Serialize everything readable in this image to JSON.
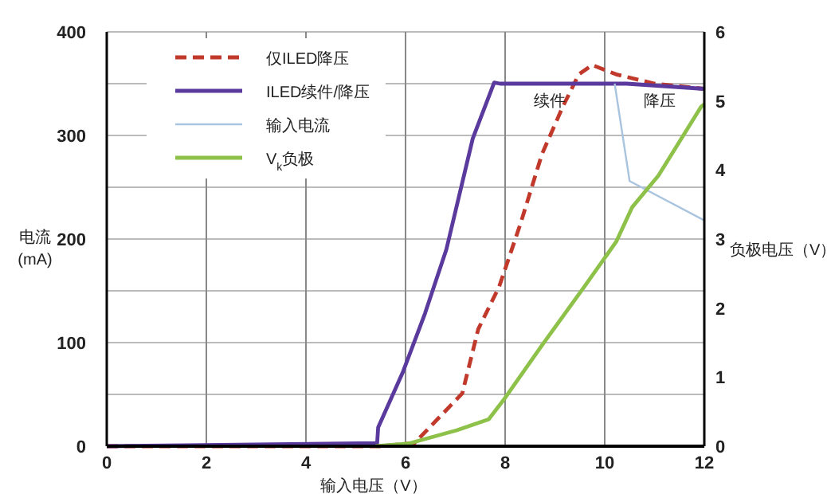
{
  "chart_data": {
    "type": "line",
    "xlabel": "输入电压（V）",
    "ylabel": "电流 (mA)",
    "y2label": "负极电压（V）",
    "xlim": [
      0,
      12
    ],
    "xticks": [
      0,
      2,
      4,
      6,
      8,
      10,
      12
    ],
    "ylim": [
      0,
      400
    ],
    "yticks": [
      0,
      {
        "value": 50,
        "label": null
      },
      100,
      {
        "value": 150,
        "label": null
      },
      200,
      {
        "value": 250,
        "label": null
      },
      300,
      {
        "value": 350,
        "label": null
      },
      400
    ],
    "y2lim": [
      0,
      6
    ],
    "y2ticks": [
      0,
      1,
      2,
      3,
      4,
      5,
      6
    ],
    "grid": true,
    "legend": "top left",
    "annotations": [
      {
        "text": "续件",
        "x": 8.9,
        "y": 350
      },
      {
        "text": "降压",
        "x": 11.1,
        "y": 350
      }
    ],
    "series": [
      {
        "name": "仅ILED降压",
        "color": "#c0392b",
        "line_style": "dashed",
        "x": [
          0,
          5.5,
          6.18,
          7.14,
          7.46,
          7.88,
          8.31,
          8.74,
          9.16,
          9.48,
          9.75,
          10.23,
          11,
          12
        ],
        "values": [
          0,
          0,
          3,
          51,
          113,
          154,
          215,
          282,
          328,
          359,
          368,
          359,
          350,
          345
        ]
      },
      {
        "name": "ILED续件/降压",
        "color": "#5b3a9e",
        "line_style": "solid",
        "x": [
          0,
          5.43,
          5.45,
          5.95,
          6.39,
          6.82,
          7.35,
          7.78,
          7.9,
          10.44,
          12
        ],
        "values": [
          0,
          3,
          18,
          72,
          128,
          190,
          297,
          351,
          350,
          350,
          345
        ]
      },
      {
        "name": "输入电流",
        "color": "#a9c4de",
        "line_style": "solid",
        "x": [
          10.2,
          10.5,
          12
        ],
        "values": [
          350,
          256,
          218
        ]
      },
      {
        "name": "V$_{k}$负极",
        "color": "#8dc14a",
        "line_style": "solid",
        "axis": "y2",
        "x": [
          5.4,
          6.07,
          7.03,
          7.67,
          7.99,
          8.74,
          9.59,
          10.23,
          10.55,
          11.08,
          11.94,
          12
        ],
        "values": [
          0,
          0.04,
          0.23,
          0.39,
          0.69,
          1.46,
          2.31,
          2.96,
          3.46,
          3.92,
          4.92,
          4.95
        ]
      }
    ]
  }
}
